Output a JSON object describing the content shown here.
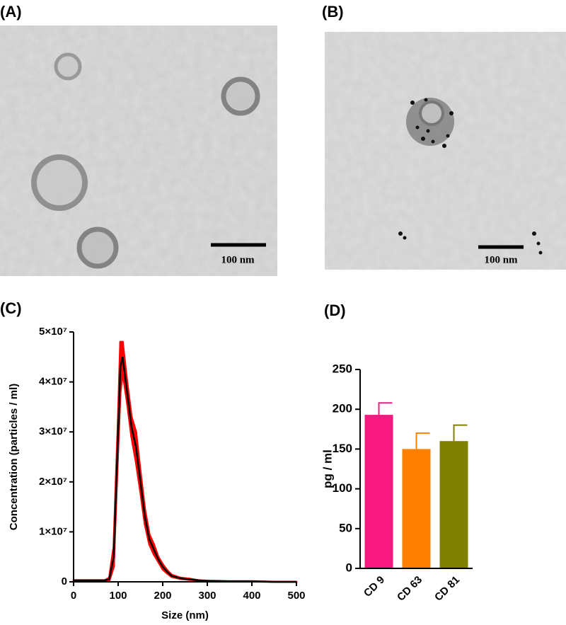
{
  "panels": [
    {
      "label": "(A)",
      "scale_bar": "100 nm"
    },
    {
      "label": "(B)",
      "scale_bar": "100 nm"
    }
  ],
  "chart_data": [
    {
      "type": "line",
      "label": "(C)",
      "x_label": "Size (nm)",
      "y_label": "Concentration (particles / ml)",
      "x": [
        0,
        50,
        70,
        80,
        90,
        100,
        105,
        110,
        120,
        130,
        140,
        150,
        160,
        170,
        180,
        190,
        200,
        210,
        220,
        240,
        260,
        280,
        300,
        350,
        400,
        450,
        500
      ],
      "series": [
        {
          "color": "#000000",
          "error_color": "#ff0000",
          "values": [
            300000,
            300000,
            300000,
            500000,
            5000000,
            30000000,
            43000000,
            45000000,
            38000000,
            31000000,
            27000000,
            20000000,
            13000000,
            8500000,
            6500000,
            4500000,
            3000000,
            2000000,
            1200000,
            700000,
            500000,
            300000,
            200000,
            100000,
            100000,
            0,
            0
          ],
          "errors": [
            0,
            0,
            0,
            300000,
            2000000,
            3000000,
            5000000,
            3000000,
            2000000,
            2000000,
            3000000,
            2000000,
            1500000,
            1000000,
            1000000,
            500000,
            500000,
            300000,
            200000,
            100000,
            100000,
            0,
            0,
            0,
            0,
            0,
            0
          ]
        }
      ],
      "xlim": [
        0,
        500
      ],
      "xticks": [
        0,
        100,
        200,
        300,
        400,
        500
      ],
      "ylim": [
        0,
        50000000
      ],
      "yticks": [
        0,
        {
          "value": 10000000,
          "label": "1×10⁷"
        },
        {
          "value": 20000000,
          "label": "2×10⁷"
        },
        {
          "value": 30000000,
          "label": "3×10⁷"
        },
        {
          "value": 40000000,
          "label": "4×10⁷"
        },
        {
          "value": 50000000,
          "label": "5×10⁷"
        }
      ]
    },
    {
      "type": "bar",
      "label": "(D)",
      "y_label": "pg / ml",
      "categories": [
        "CD 9",
        "CD 63",
        "CD 81"
      ],
      "values": [
        193,
        150,
        160
      ],
      "errors": [
        15,
        20,
        20
      ],
      "colors": [
        "#f7197f",
        "#ff8000",
        "#808000"
      ],
      "ylim": [
        0,
        250
      ],
      "yticks": [
        0,
        50,
        100,
        150,
        200,
        250
      ]
    }
  ]
}
